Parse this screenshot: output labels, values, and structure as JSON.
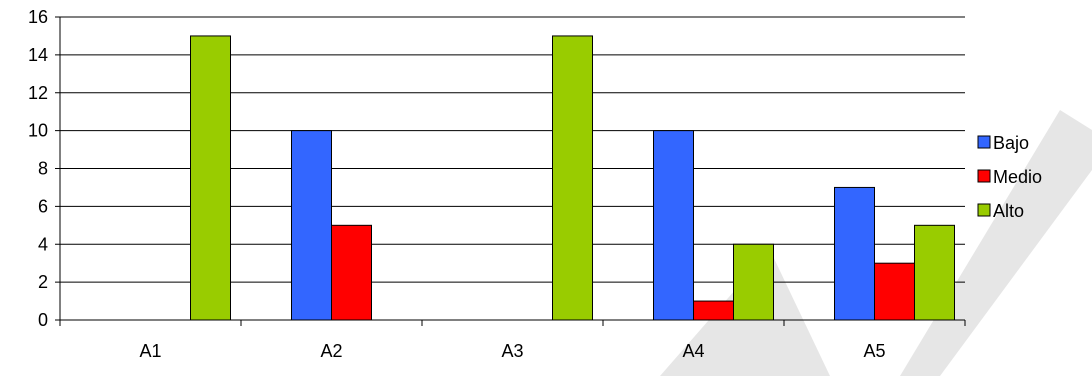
{
  "chart_data": {
    "type": "bar",
    "categories": [
      "A1",
      "A2",
      "A3",
      "A4",
      "A5"
    ],
    "series": [
      {
        "name": "Bajo",
        "color": "#3366ff",
        "values": [
          0,
          10,
          0,
          10,
          7
        ]
      },
      {
        "name": "Medio",
        "color": "#ff0000",
        "values": [
          0,
          5,
          0,
          1,
          3
        ]
      },
      {
        "name": "Alto",
        "color": "#99cc00",
        "values": [
          15,
          0,
          15,
          4,
          5
        ]
      }
    ],
    "yticks": [
      "0",
      "2",
      "4",
      "6",
      "8",
      "10",
      "12",
      "14",
      "16"
    ],
    "ylim": [
      0,
      16
    ],
    "grid": true,
    "legend_position": "right",
    "watermark": "WA"
  }
}
